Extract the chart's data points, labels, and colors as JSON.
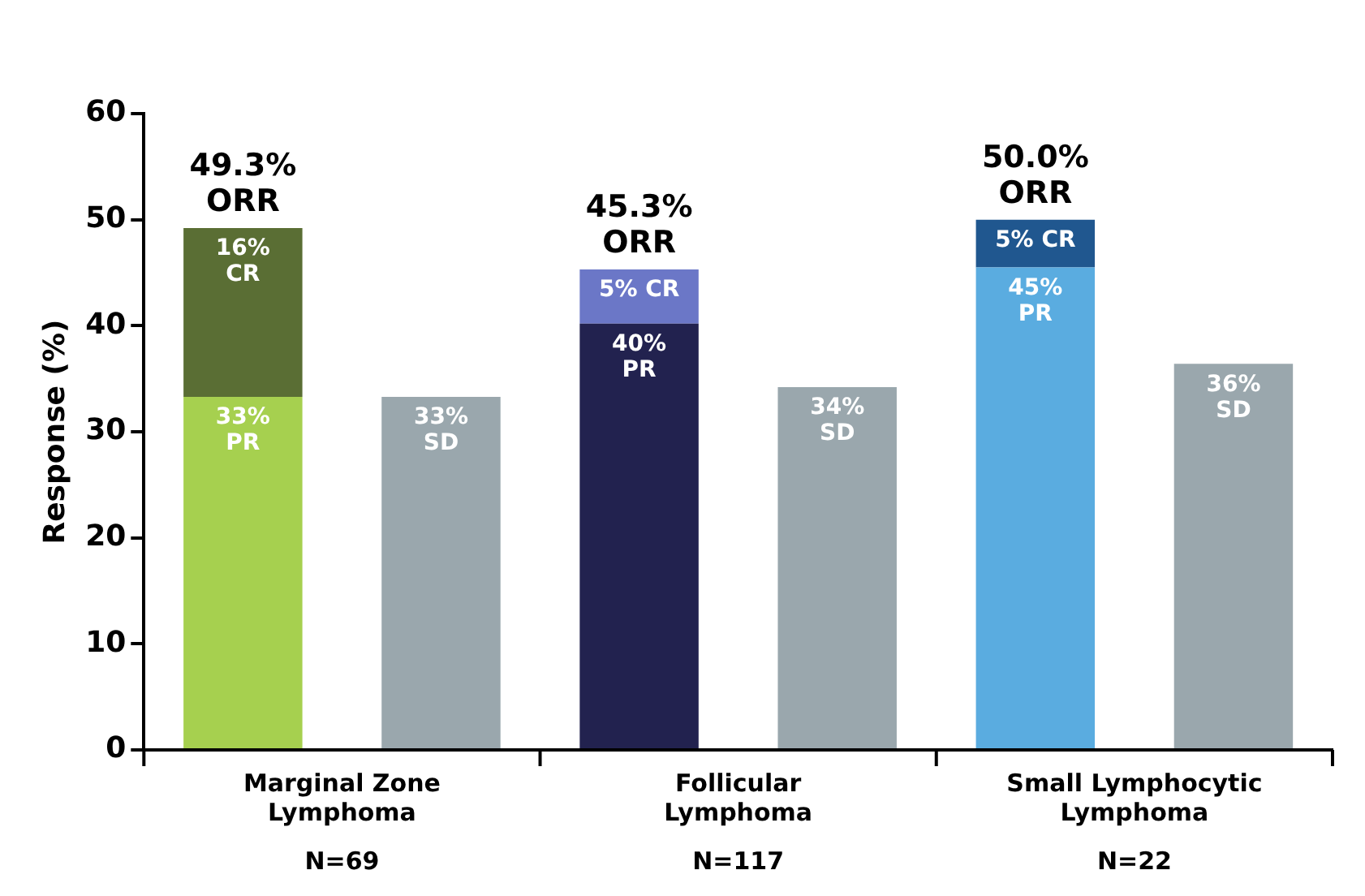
{
  "chart_data": {
    "type": "bar",
    "stacked": true,
    "ylabel": "Response (%)",
    "categories": [
      "Marginal Zone\nLymphoma\nN=69",
      null,
      "Follicular\nLymphoma\nN=117",
      null,
      "Small Lymphocytic\nLymphoma\nN=22",
      null
    ],
    "series": [
      {
        "colors": [
          "#a6d04f",
          null,
          "#22224f",
          null,
          "#5aace0",
          null
        ],
        "values": [
          33.3,
          null,
          40.2,
          null,
          45.5,
          null
        ],
        "value_labels": [
          "33%\nPR",
          null,
          "40%\nPR",
          null,
          "45%\nPR",
          null
        ]
      },
      {
        "colors": [
          "#5a6e34",
          null,
          "#6b77c7",
          null,
          "#20578f",
          null
        ],
        "values": [
          15.9,
          null,
          5.1,
          null,
          4.5,
          null
        ],
        "value_labels": [
          "16%\nCR",
          null,
          "5% CR",
          null,
          "5% CR",
          null
        ]
      },
      {
        "color": "#9aa7ad",
        "values": [
          null,
          33.3,
          null,
          34.2,
          null,
          36.4
        ],
        "value_labels": [
          null,
          "33%\nSD",
          null,
          "34%\nSD",
          null,
          "36%\nSD"
        ]
      }
    ],
    "totals": [
      "49.3%\nORR",
      null,
      "45.3%\nORR",
      null,
      "50.0%\nORR",
      null
    ],
    "ylim": [
      0,
      60
    ],
    "yticks": [
      0,
      10,
      20,
      30,
      40,
      50,
      60
    ],
    "grid": false,
    "legend": false
  }
}
